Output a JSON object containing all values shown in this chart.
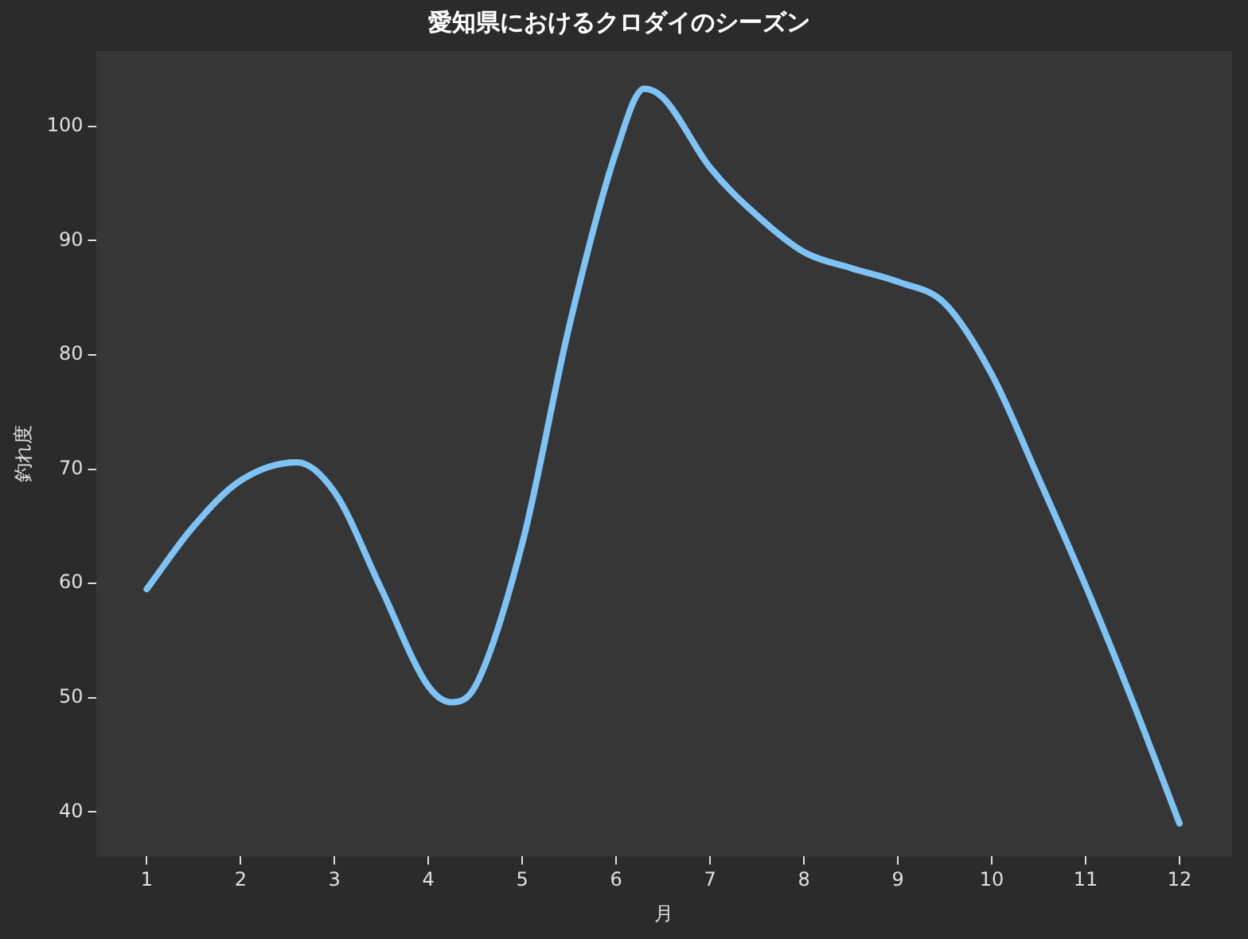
{
  "chart_data": {
    "type": "line",
    "title": "愛知県におけるクロダイのシーズン",
    "xlabel": "月",
    "ylabel": "釣れ度",
    "series": [
      {
        "color": "#7ec3f5",
        "x": [
          1,
          1.5,
          2,
          2.6,
          3,
          3.5,
          4,
          4.25,
          4.5,
          5,
          5.5,
          6,
          6.3,
          6.5,
          7,
          7.5,
          8,
          8.5,
          9,
          9.5,
          10,
          10.5,
          11,
          11.5,
          12
        ],
        "values": [
          59.5,
          65,
          69,
          70.6,
          68,
          59.5,
          51,
          49.6,
          51,
          63.5,
          82.5,
          97.8,
          103.3,
          102.5,
          96.4,
          92.2,
          89,
          87.6,
          86.4,
          84.5,
          78.3,
          69.2,
          59.8,
          49.7,
          39
        ]
      }
    ],
    "xlim": [
      0.46,
      12.56
    ],
    "ylim": [
      36.1,
      106.6
    ],
    "xticks": [
      1,
      2,
      3,
      4,
      5,
      6,
      7,
      8,
      9,
      10,
      11,
      12
    ],
    "yticks": [
      40,
      50,
      60,
      70,
      80,
      90,
      100
    ],
    "grid": false,
    "legend": false,
    "marker": "none",
    "line_style": "solid"
  }
}
